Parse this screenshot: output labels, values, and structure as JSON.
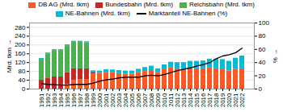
{
  "chart_data": {
    "type": "bar",
    "stacked": true,
    "grid": true,
    "legend": "top",
    "categories": [
      "1991",
      "1992",
      "1993",
      "1994",
      "1995",
      "1996",
      "1997",
      "1998",
      "1999",
      "2000",
      "2001",
      "2002",
      "2003",
      "2004",
      "2005",
      "2006",
      "2007",
      "2008",
      "2009",
      "2010",
      "2011",
      "2012",
      "2013",
      "2014",
      "2015",
      "2016",
      "2017",
      "2018",
      "2019",
      "2020",
      "2021",
      "2022"
    ],
    "series": [
      {
        "name": "DB AG (Mrd. tkm)",
        "color": "#FF5722",
        "values": [
          0,
          0,
          0,
          0,
          20,
          40,
          42,
          44,
          68,
          72,
          76,
          74,
          70,
          68,
          68,
          74,
          80,
          84,
          74,
          88,
          96,
          92,
          90,
          94,
          92,
          92,
          96,
          92,
          88,
          82,
          90,
          92
        ]
      },
      {
        "name": "Bundesbahn (Mrd. tkm)",
        "color": "#C62828",
        "values": [
          40,
          50,
          55,
          55,
          55,
          52,
          50,
          48,
          8,
          0,
          0,
          0,
          0,
          0,
          0,
          0,
          0,
          0,
          0,
          0,
          0,
          0,
          0,
          0,
          0,
          0,
          0,
          0,
          0,
          0,
          0,
          0
        ]
      },
      {
        "name": "Reichsbahn (Mrd. tkm)",
        "color": "#4CAF50",
        "values": [
          95,
          110,
          120,
          120,
          122,
          120,
          120,
          118,
          0,
          0,
          0,
          0,
          0,
          0,
          0,
          0,
          0,
          0,
          0,
          0,
          0,
          0,
          0,
          0,
          0,
          0,
          0,
          0,
          0,
          0,
          0,
          0
        ]
      },
      {
        "name": "NE-Bahnen (Mrd. tkm)",
        "color": "#00BCD4",
        "values": [
          4,
          4,
          4,
          4,
          4,
          5,
          5,
          5,
          7,
          10,
          12,
          13,
          14,
          14,
          14,
          16,
          18,
          20,
          18,
          22,
          26,
          28,
          30,
          32,
          34,
          36,
          40,
          44,
          46,
          44,
          50,
          58
        ]
      },
      {
        "name": "Marktanteil NE-Bahnen (%)",
        "type": "line",
        "axis": "y2",
        "color": "#000000",
        "values": [
          8,
          7,
          6.5,
          6,
          6,
          7,
          7,
          7,
          9,
          12,
          14,
          15,
          17,
          18,
          18,
          18,
          20,
          21,
          20,
          22,
          25,
          28,
          30,
          32,
          35,
          37,
          40,
          46,
          50,
          52,
          55,
          62
        ]
      }
    ],
    "ylabel": "Mrd. tkm",
    "y2label": "%",
    "ylim": [
      0,
      300
    ],
    "yticks": [
      0,
      40,
      80,
      120,
      160,
      200,
      240,
      280
    ],
    "y2lim": [
      0,
      100
    ],
    "y2ticks": [
      0,
      20,
      40,
      60,
      80,
      100
    ]
  }
}
